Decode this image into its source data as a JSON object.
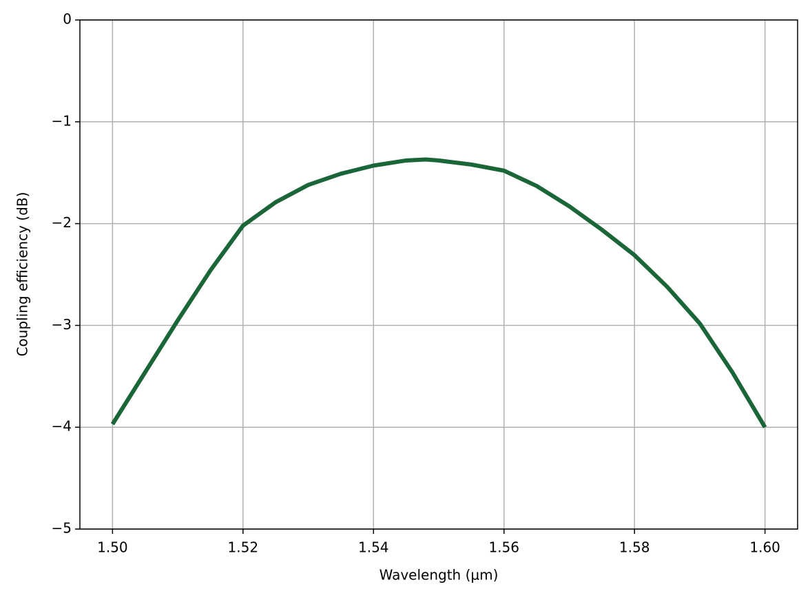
{
  "chart_data": {
    "type": "line",
    "x_label": "Wavelength (µm)",
    "y_label": "Coupling efficiency (dB)",
    "x": [
      1.5,
      1.505,
      1.51,
      1.515,
      1.52,
      1.525,
      1.53,
      1.535,
      1.54,
      1.545,
      1.548,
      1.55,
      1.555,
      1.56,
      1.565,
      1.57,
      1.575,
      1.58,
      1.585,
      1.59,
      1.595,
      1.6
    ],
    "series": [
      {
        "color": "#1b6638",
        "values": [
          -3.97,
          -3.46,
          -2.95,
          -2.46,
          -2.02,
          -1.79,
          -1.62,
          -1.51,
          -1.43,
          -1.38,
          -1.37,
          -1.38,
          -1.42,
          -1.48,
          -1.63,
          -1.83,
          -2.06,
          -2.31,
          -2.62,
          -2.98,
          -3.46,
          -4.0
        ]
      }
    ],
    "xlim": [
      1.495,
      1.605
    ],
    "ylim": [
      -5,
      0
    ],
    "xticks": [
      {
        "value": 1.5,
        "label": "1.50"
      },
      1.52,
      1.54,
      1.56,
      1.58,
      {
        "value": 1.6,
        "label": "1.60"
      }
    ],
    "yticks": [
      {
        "value": -5,
        "label": "−5"
      },
      {
        "value": -4,
        "label": "−4"
      },
      {
        "value": -3,
        "label": "−3"
      },
      {
        "value": -2,
        "label": "−2"
      },
      {
        "value": -1,
        "label": "−1"
      },
      0
    ],
    "grid": true
  }
}
